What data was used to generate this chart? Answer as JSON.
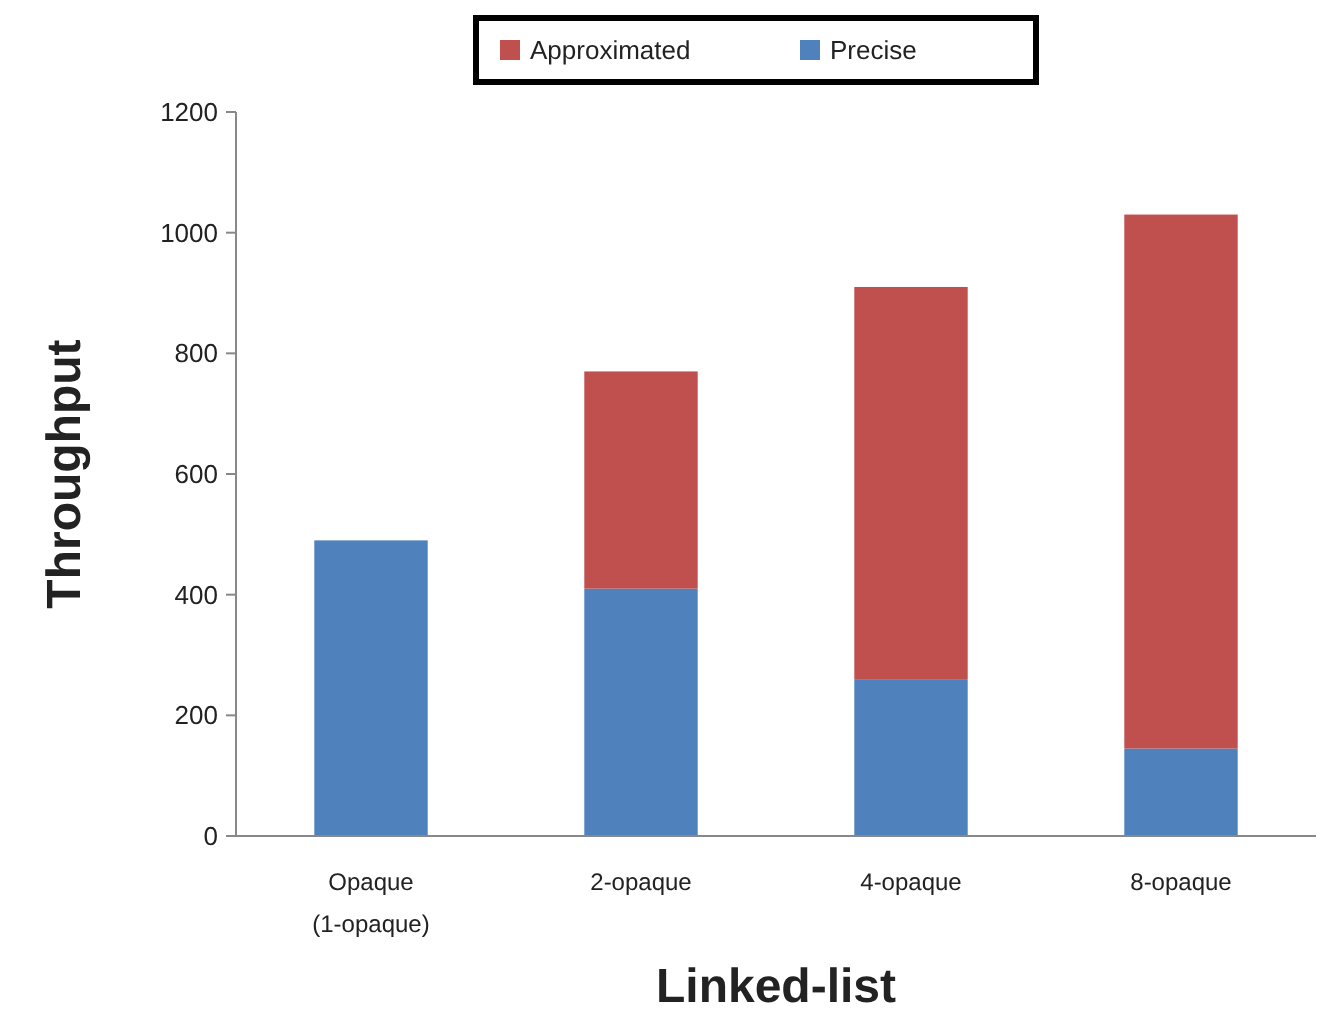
{
  "chart_data": {
    "type": "bar",
    "stacked": true,
    "xlabel": "Linked-list",
    "ylabel": "Throughput",
    "categories": [
      "Opaque\n(1-opaque)",
      "2-opaque",
      "4-opaque",
      "8-opaque"
    ],
    "series": [
      {
        "name": "Precise",
        "color": "#4f81bd",
        "values": [
          490,
          410,
          260,
          145
        ]
      },
      {
        "name": "Approximated",
        "color": "#c0504d",
        "values": [
          null,
          360,
          650,
          885
        ]
      }
    ],
    "ylim": [
      0,
      1200
    ],
    "yticks": [
      0,
      200,
      400,
      600,
      800,
      1000,
      1200
    ],
    "grid": false,
    "legend": "top"
  }
}
